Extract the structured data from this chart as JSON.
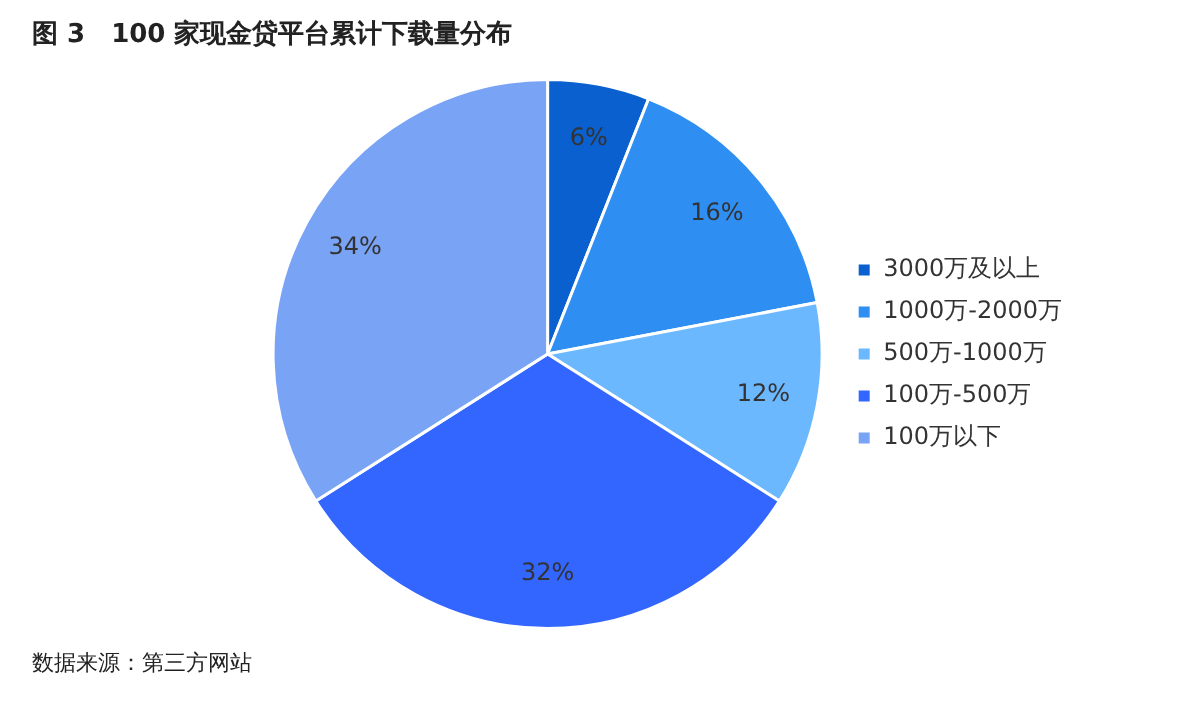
{
  "chart_data": {
    "type": "pie",
    "title": "图 3　100 家现金贷平台累计下载量分布",
    "categories": [
      "3000万及以上",
      "1000万-2000万",
      "500万-1000万",
      "100万-500万",
      "100万以下"
    ],
    "values": [
      6,
      16,
      12,
      32,
      34
    ],
    "colors": [
      "#0a60cf",
      "#2e8ef2",
      "#6cb8ff",
      "#3366ff",
      "#79a3f5"
    ],
    "value_labels": [
      "6%",
      "16%",
      "12%",
      "32%",
      "34%"
    ],
    "legend": "right",
    "annotations": [
      "数据来源：第三方网站"
    ]
  }
}
